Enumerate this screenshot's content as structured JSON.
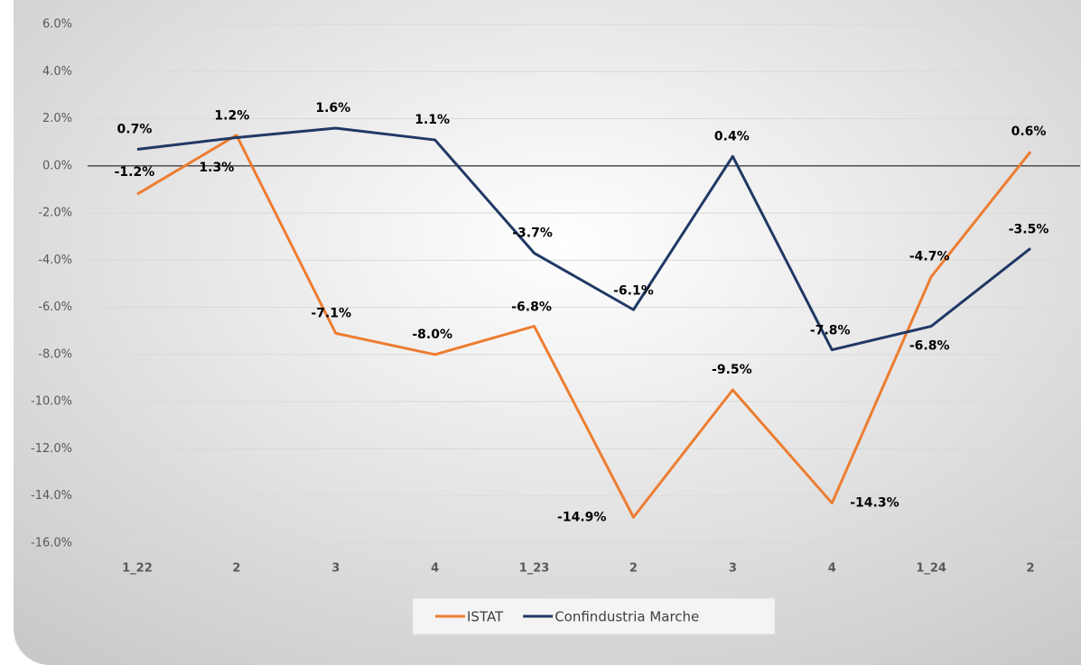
{
  "chart_data": {
    "type": "line",
    "categories": [
      "1_22",
      "2",
      "3",
      "4",
      "1_23",
      "2",
      "3",
      "4",
      "1_24",
      "2"
    ],
    "series": [
      {
        "name": "ISTAT",
        "color": "#ed7d31",
        "values": [
          -1.2,
          1.3,
          -7.1,
          -8.0,
          -6.8,
          -14.9,
          -9.5,
          -14.3,
          -4.7,
          0.6
        ],
        "value_labels": [
          "-1.2%",
          "1.3%",
          "-7.1%",
          "-8.0%",
          "-6.8%",
          "-14.9%",
          "-9.5%",
          "-14.3%",
          "-4.7%",
          "0.6%"
        ]
      },
      {
        "name": "Confindustria Marche",
        "color": "#203864",
        "values": [
          0.7,
          1.2,
          1.6,
          1.1,
          -3.7,
          -6.1,
          0.4,
          -7.8,
          -6.8,
          -3.5
        ],
        "value_labels": [
          "0.7%",
          "1.2%",
          "1.6%",
          "1.1%",
          "-3.7%",
          "-6.1%",
          "0.4%",
          "-7.8%",
          "-6.8%",
          "-3.5%"
        ]
      }
    ],
    "ylim": [
      -16,
      6
    ],
    "yticks": [
      {
        "value": -16,
        "label": "-16.0%"
      },
      {
        "value": -14,
        "label": "-14.0%"
      },
      {
        "value": -12,
        "label": "-12.0%"
      },
      {
        "value": -10,
        "label": "-10.0%"
      },
      {
        "value": -8,
        "label": "-8.0%"
      },
      {
        "value": -6,
        "label": "-6.0%"
      },
      {
        "value": -4,
        "label": "-4.0%"
      },
      {
        "value": -2,
        "label": "-2.0%"
      },
      {
        "value": 0,
        "label": "0.0%"
      },
      {
        "value": 2,
        "label": "2.0%"
      },
      {
        "value": 4,
        "label": "4.0%"
      },
      {
        "value": 6,
        "label": "6.0%"
      }
    ],
    "grid": true,
    "legend": "bottom"
  }
}
